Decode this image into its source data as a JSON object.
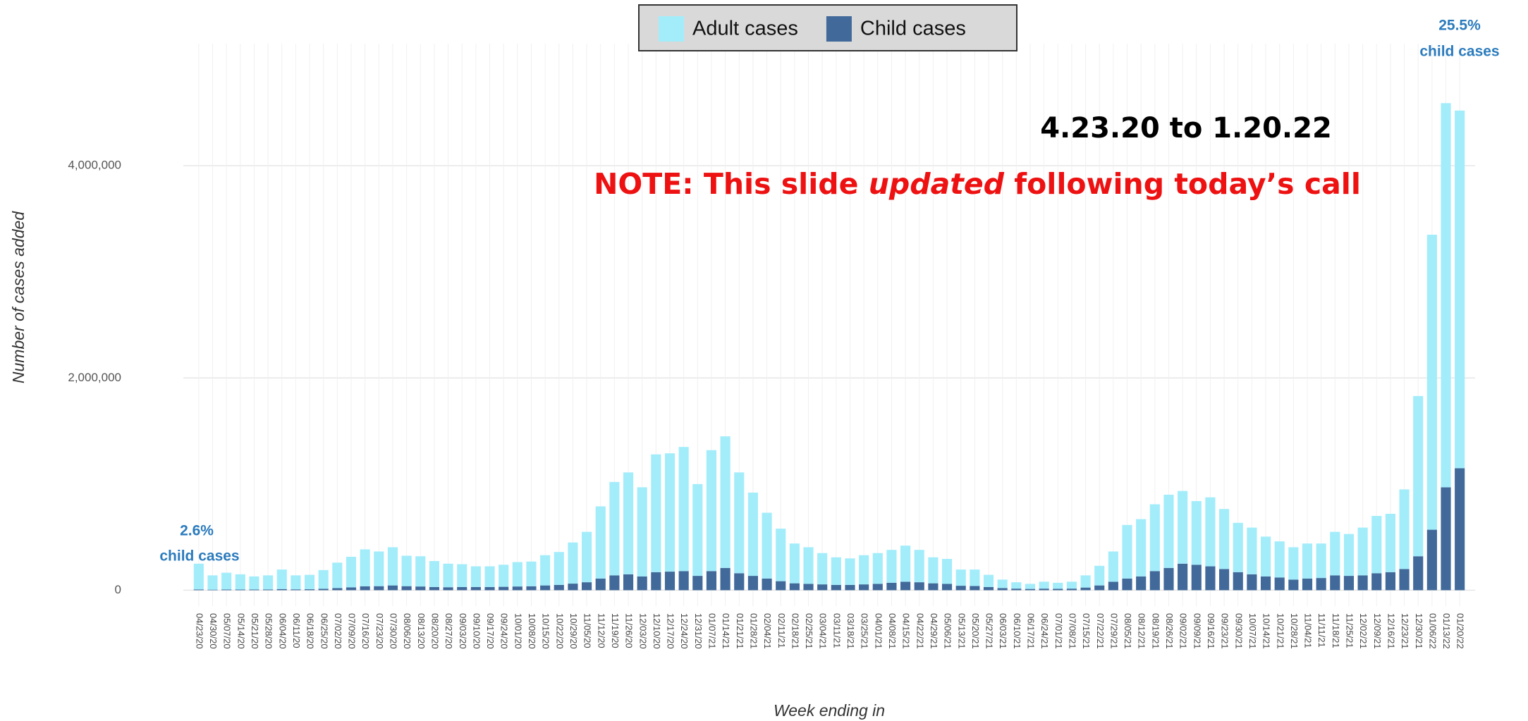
{
  "chart_data": {
    "type": "stacked_bar",
    "x_label": "Week ending in",
    "y_label": "Number of cases added",
    "categories": [
      "04/23/20",
      "04/30/20",
      "05/07/20",
      "05/14/20",
      "05/21/20",
      "05/28/20",
      "06/04/20",
      "06/11/20",
      "06/18/20",
      "06/25/20",
      "07/02/20",
      "07/09/20",
      "07/16/20",
      "07/23/20",
      "07/30/20",
      "08/06/20",
      "08/13/20",
      "08/20/20",
      "08/27/20",
      "09/03/20",
      "09/10/20",
      "09/17/20",
      "09/24/20",
      "10/01/20",
      "10/08/20",
      "10/15/20",
      "10/22/20",
      "10/29/20",
      "11/05/20",
      "11/12/20",
      "11/19/20",
      "11/26/20",
      "12/03/20",
      "12/10/20",
      "12/17/20",
      "12/24/20",
      "12/31/20",
      "01/07/21",
      "01/14/21",
      "01/21/21",
      "01/28/21",
      "02/04/21",
      "02/11/21",
      "02/18/21",
      "02/25/21",
      "03/04/21",
      "03/11/21",
      "03/18/21",
      "03/25/21",
      "04/01/21",
      "04/08/21",
      "04/15/21",
      "04/22/21",
      "04/29/21",
      "05/06/21",
      "05/13/21",
      "05/20/21",
      "05/27/21",
      "06/03/21",
      "06/10/21",
      "06/17/21",
      "06/24/21",
      "07/01/21",
      "07/08/21",
      "07/15/21",
      "07/22/21",
      "07/29/21",
      "08/05/21",
      "08/12/21",
      "08/19/21",
      "08/26/21",
      "09/02/21",
      "09/09/21",
      "09/16/21",
      "09/23/21",
      "09/30/21",
      "10/07/21",
      "10/14/21",
      "10/21/21",
      "10/28/21",
      "11/04/21",
      "11/11/21",
      "11/18/21",
      "11/25/21",
      "12/02/21",
      "12/09/21",
      "12/16/21",
      "12/23/21",
      "12/30/21",
      "01/06/22",
      "01/13/22",
      "01/20/22"
    ],
    "series": [
      {
        "name": "Child cases",
        "color": "#41699a",
        "values": [
          7000,
          5000,
          6000,
          6000,
          6000,
          7000,
          11000,
          8000,
          9000,
          13000,
          20000,
          27000,
          37000,
          38000,
          45000,
          38000,
          35000,
          30000,
          28000,
          30000,
          30000,
          30000,
          32000,
          35000,
          37000,
          45000,
          50000,
          62000,
          75000,
          110000,
          140000,
          150000,
          130000,
          170000,
          175000,
          180000,
          135000,
          180000,
          210000,
          160000,
          135000,
          110000,
          85000,
          65000,
          60000,
          55000,
          50000,
          50000,
          55000,
          60000,
          70000,
          80000,
          75000,
          65000,
          60000,
          42000,
          40000,
          30000,
          20000,
          15000,
          12000,
          15000,
          13000,
          15000,
          25000,
          45000,
          80000,
          110000,
          130000,
          180000,
          210000,
          250000,
          240000,
          225000,
          200000,
          170000,
          150000,
          130000,
          120000,
          100000,
          110000,
          115000,
          140000,
          135000,
          140000,
          160000,
          170000,
          200000,
          320000,
          570000,
          970000,
          1150000
        ]
      },
      {
        "name": "Adult cases",
        "color": "#a3edfb",
        "values": [
          243000,
          135000,
          159000,
          144000,
          124000,
          133000,
          184000,
          132000,
          136000,
          177000,
          240000,
          288000,
          348000,
          327000,
          360000,
          287000,
          285000,
          245000,
          222000,
          215000,
          195000,
          195000,
          208000,
          230000,
          233000,
          285000,
          310000,
          388000,
          475000,
          680000,
          880000,
          960000,
          840000,
          1110000,
          1115000,
          1170000,
          865000,
          1140000,
          1240000,
          950000,
          785000,
          620000,
          495000,
          375000,
          345000,
          295000,
          260000,
          250000,
          275000,
          290000,
          310000,
          340000,
          305000,
          245000,
          235000,
          153000,
          155000,
          115000,
          80000,
          60000,
          48000,
          65000,
          57000,
          65000,
          115000,
          185000,
          285000,
          505000,
          540000,
          630000,
          690000,
          685000,
          600000,
          650000,
          565000,
          465000,
          440000,
          375000,
          340000,
          305000,
          330000,
          325000,
          410000,
          395000,
          450000,
          540000,
          550000,
          750000,
          1510000,
          2780000,
          3620000,
          3370000
        ]
      }
    ],
    "legend_order": [
      1,
      0
    ],
    "legend_position": "top",
    "ylim": [
      -150000,
      5150000
    ],
    "yticks": [
      0,
      {
        "value": 2000000,
        "label": "2,000,000"
      },
      {
        "value": 4000000,
        "label": "4,000,000"
      }
    ],
    "grid": true,
    "annotations": {
      "start_pct": "2.6%",
      "start_text": "child cases",
      "end_pct": "25.5%",
      "end_text": "child cases",
      "range": "4.23.20 to 1.20.22",
      "note": [
        "NOTE: This slide ",
        "updated",
        " following today’s call"
      ]
    }
  }
}
